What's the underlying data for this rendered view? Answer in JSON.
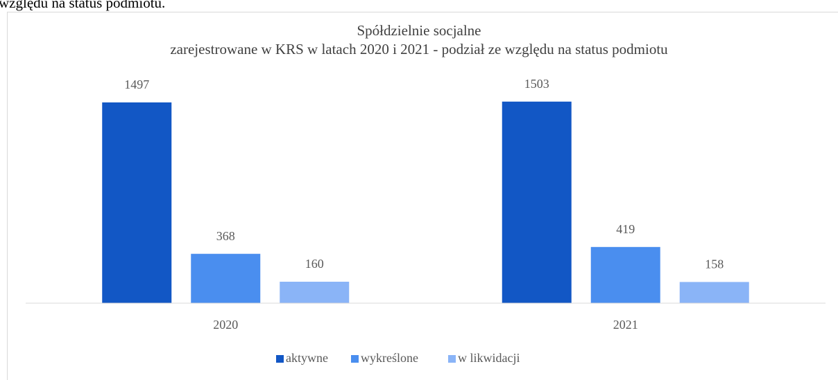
{
  "page_text": "względu na status podmiotu.",
  "chart_data": {
    "type": "bar",
    "title": "Spółdzielnie socjalne",
    "subtitle": "zarejestrowane w KRS w latach 2020 i 2021 - podział ze względu na status podmiotu",
    "categories": [
      "2020",
      "2021"
    ],
    "series": [
      {
        "name": "aktywne",
        "color": "#1257c5",
        "values": [
          1497,
          1503
        ]
      },
      {
        "name": "wykreślone",
        "color": "#4a8eef",
        "values": [
          368,
          419
        ]
      },
      {
        "name": "w likwidacji",
        "color": "#8ab4f7",
        "values": [
          160,
          158
        ]
      }
    ],
    "ylim": [
      0,
      1600
    ],
    "legend": "bottom"
  }
}
